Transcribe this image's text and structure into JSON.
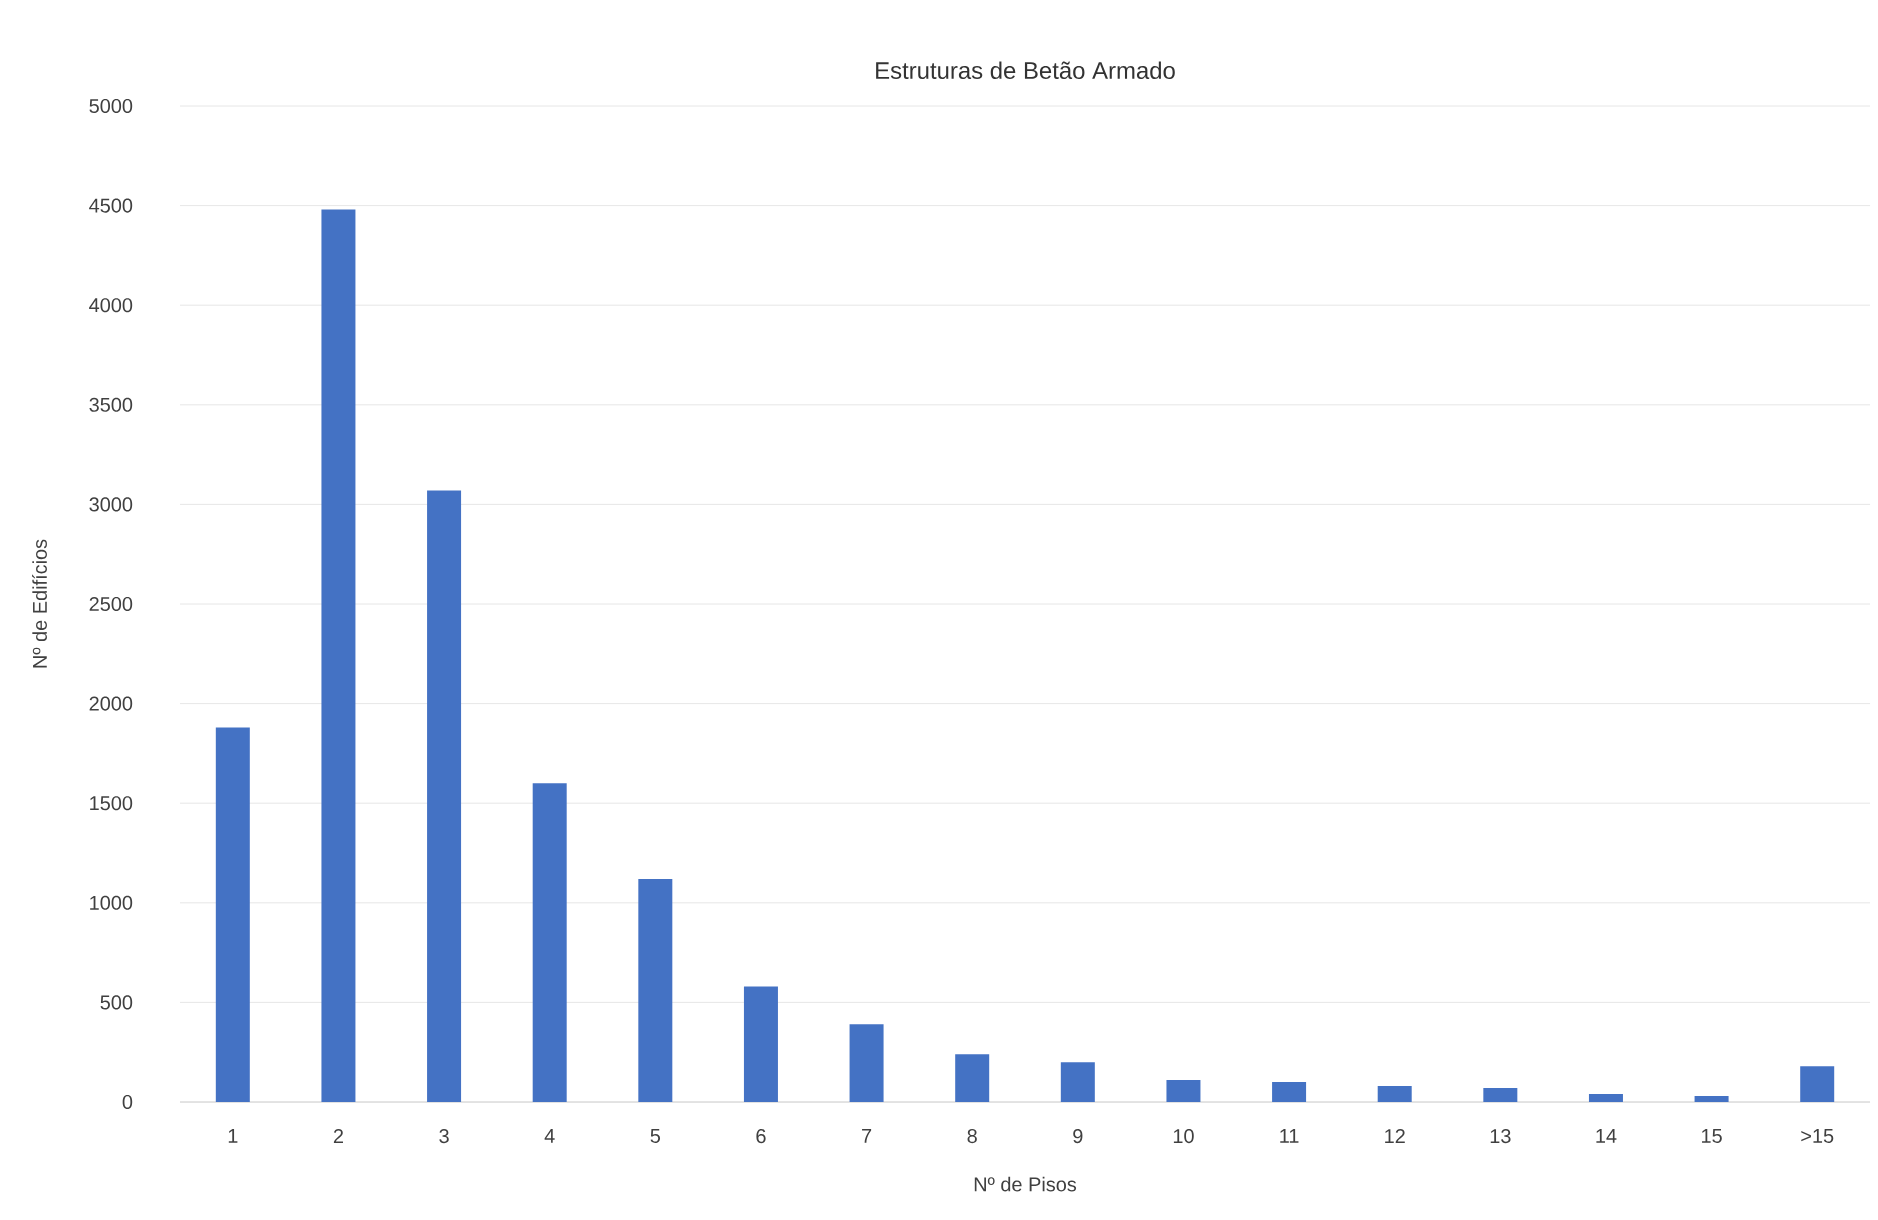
{
  "chart_data": {
    "type": "bar",
    "title": "Estruturas de Betão Armado",
    "xlabel": "Nº de Pisos",
    "ylabel": "Nº de Edifícios",
    "categories": [
      "1",
      "2",
      "3",
      "4",
      "5",
      "6",
      "7",
      "8",
      "9",
      "10",
      "11",
      "12",
      "13",
      "14",
      "15",
      ">15"
    ],
    "values": [
      1880,
      4480,
      3070,
      1600,
      1120,
      580,
      390,
      240,
      200,
      110,
      100,
      80,
      70,
      40,
      30,
      180
    ],
    "color": "#4472c4",
    "ylim": [
      0,
      5000
    ],
    "yticks": [
      0,
      500,
      1000,
      1500,
      2000,
      2500,
      3000,
      3500,
      4000,
      4500,
      5000
    ],
    "grid": "y"
  }
}
